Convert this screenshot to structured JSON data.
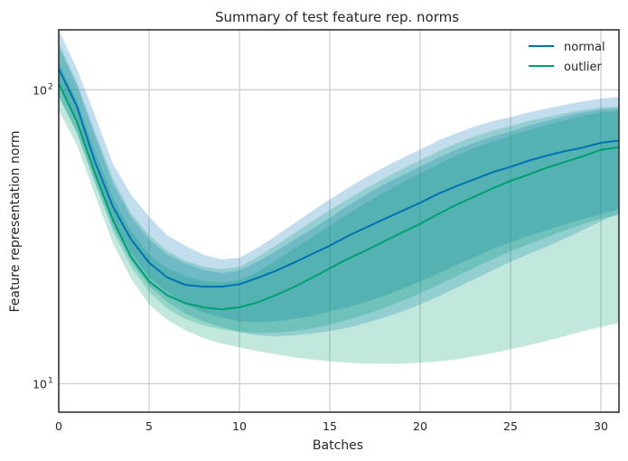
{
  "chart_data": {
    "type": "line",
    "title": "Summary of test feature rep. norms",
    "xlabel": "Batches",
    "ylabel": "Feature representation norm",
    "xlim": [
      0,
      31
    ],
    "ylim": [
      8,
      160
    ],
    "yscale": "log",
    "grid": true,
    "legend_position": "top-right",
    "x_ticks": [
      0,
      5,
      10,
      15,
      20,
      25,
      30
    ],
    "y_ticks": [
      {
        "value": 10,
        "base": "10",
        "exp": "1"
      },
      {
        "value": 100,
        "base": "10",
        "exp": "2"
      }
    ],
    "x": [
      0,
      1,
      2,
      3,
      4,
      5,
      6,
      7,
      8,
      9,
      10,
      11,
      12,
      13,
      14,
      15,
      16,
      17,
      18,
      19,
      20,
      21,
      22,
      23,
      24,
      25,
      26,
      27,
      28,
      29,
      30,
      31
    ],
    "series": [
      {
        "name": "normal",
        "color": "#0072b2",
        "median": [
          118,
          88,
          57,
          40,
          31,
          25.8,
          23,
          21.7,
          21.4,
          21.4,
          21.8,
          22.9,
          24.2,
          25.8,
          27.6,
          29.5,
          31.8,
          34,
          36.3,
          38.7,
          41.3,
          44.3,
          47,
          49.6,
          52.4,
          54.7,
          57.4,
          59.7,
          61.8,
          63.6,
          66,
          67.2
        ],
        "band_outer_low": [
          95,
          72,
          49,
          34,
          26,
          21.5,
          19,
          17.3,
          16.3,
          15.6,
          15,
          14.6,
          14.5,
          14.6,
          14.8,
          15.1,
          15.5,
          16.1,
          16.8,
          17.6,
          18.6,
          19.8,
          21.2,
          22.7,
          24.3,
          26,
          27.6,
          29.3,
          31.2,
          33.3,
          35.7,
          38
        ],
        "band_outer_high": [
          160,
          118,
          82,
          56,
          44,
          37,
          32,
          29.5,
          27.5,
          26.5,
          26.8,
          29,
          31.8,
          35,
          38.6,
          42.4,
          46.3,
          50.5,
          54.5,
          58.6,
          62.6,
          67.2,
          71.2,
          75,
          78.2,
          80.8,
          83.8,
          86.4,
          88.9,
          91.3,
          93.4,
          94.5
        ],
        "band_inner_low": [
          105,
          79,
          52,
          36,
          28,
          23,
          20.5,
          18.6,
          17.5,
          16.8,
          16.3,
          16.2,
          16.3,
          16.6,
          17,
          17.6,
          18.2,
          19,
          19.9,
          21,
          22.3,
          23.7,
          25.3,
          27,
          28.7,
          30.3,
          31.8,
          33.3,
          34.8,
          36.3,
          37.8,
          39.2
        ],
        "band_inner_high": [
          140,
          104,
          70,
          48,
          37,
          31,
          27.5,
          25.7,
          24.4,
          23.8,
          24.3,
          26,
          28.2,
          30.8,
          33.5,
          36.7,
          40.3,
          44,
          47.6,
          51.2,
          54.8,
          58.7,
          62.6,
          66,
          69.3,
          72.2,
          75.6,
          78.5,
          81.3,
          83.8,
          85.6,
          86.5
        ]
      },
      {
        "name": "outlier",
        "color": "#009e73",
        "median": [
          105,
          78,
          52,
          36,
          27,
          22.3,
          20,
          18.8,
          18.2,
          17.9,
          18.2,
          18.9,
          20,
          21.3,
          22.9,
          24.7,
          26.6,
          28.4,
          30.5,
          32.7,
          35,
          37.8,
          40.6,
          43.3,
          46.2,
          49,
          51.5,
          54.3,
          56.8,
          59.4,
          62.5,
          63.8
        ],
        "band_outer_low": [
          85,
          65,
          44,
          30,
          22.8,
          18.6,
          16.5,
          15.2,
          14.3,
          13.7,
          13.3,
          12.9,
          12.6,
          12.3,
          12.1,
          11.9,
          11.8,
          11.7,
          11.7,
          11.7,
          11.8,
          11.9,
          12.1,
          12.4,
          12.7,
          13.1,
          13.5,
          14,
          14.5,
          15.1,
          15.6,
          16.1
        ],
        "band_outer_high": [
          145,
          106,
          72,
          50,
          38,
          32,
          28.3,
          26.2,
          25,
          24.5,
          25,
          27,
          29.5,
          32.4,
          35.6,
          39,
          42.5,
          46.2,
          49.9,
          53.7,
          57.6,
          61.7,
          65.7,
          69.3,
          72.6,
          75.4,
          78.3,
          80.8,
          83.2,
          85.4,
          87,
          87.8
        ],
        "band_inner_low": [
          95,
          71,
          48,
          33,
          25,
          20.5,
          18,
          16.6,
          15.8,
          15.3,
          15,
          14.9,
          14.9,
          15.1,
          15.4,
          15.9,
          16.5,
          17.2,
          18.1,
          19.1,
          20.3,
          21.7,
          23.2,
          24.8,
          26.5,
          28.2,
          29.8,
          31.5,
          33.2,
          34.9,
          36.5,
          37.4
        ],
        "band_inner_high": [
          125,
          92,
          62,
          43,
          33,
          27.5,
          24.8,
          23.2,
          22.4,
          22.1,
          22.5,
          24,
          26.2,
          28.8,
          31.5,
          34.5,
          37.8,
          41.2,
          44.7,
          48.3,
          52,
          55.8,
          59.7,
          63.3,
          66.7,
          69.8,
          73,
          76,
          78.9,
          81.6,
          83.6,
          84.7
        ]
      }
    ]
  }
}
